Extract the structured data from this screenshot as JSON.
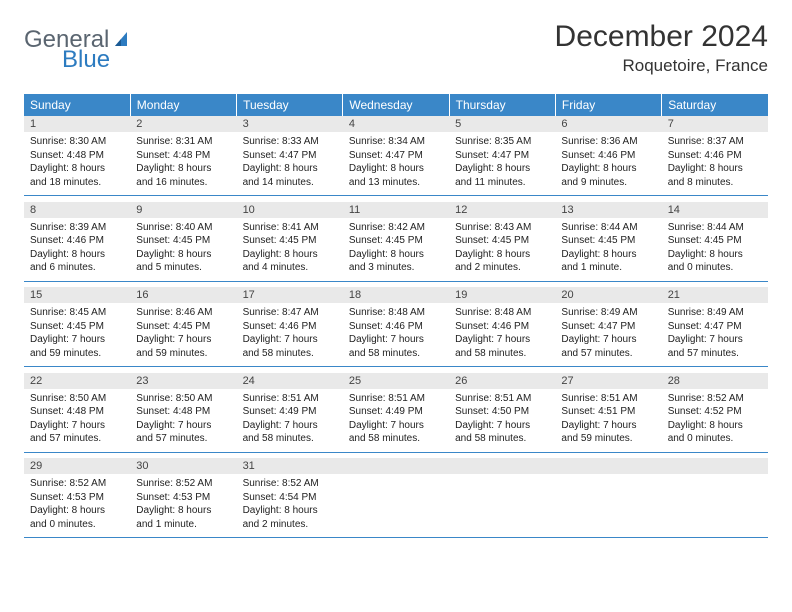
{
  "brand": {
    "word1": "General",
    "word2": "Blue"
  },
  "title": "December 2024",
  "location": "Roquetoire, France",
  "colors": {
    "header_bg": "#3a87c8",
    "header_text": "#ffffff",
    "daynum_bg": "#e9e9e9",
    "border": "#3a87c8",
    "brand_gray": "#5a6570",
    "brand_blue": "#2c7bc0"
  },
  "weekdays": [
    "Sunday",
    "Monday",
    "Tuesday",
    "Wednesday",
    "Thursday",
    "Friday",
    "Saturday"
  ],
  "weeks": [
    [
      {
        "d": "1",
        "sr": "Sunrise: 8:30 AM",
        "ss": "Sunset: 4:48 PM",
        "dl1": "Daylight: 8 hours",
        "dl2": "and 18 minutes."
      },
      {
        "d": "2",
        "sr": "Sunrise: 8:31 AM",
        "ss": "Sunset: 4:48 PM",
        "dl1": "Daylight: 8 hours",
        "dl2": "and 16 minutes."
      },
      {
        "d": "3",
        "sr": "Sunrise: 8:33 AM",
        "ss": "Sunset: 4:47 PM",
        "dl1": "Daylight: 8 hours",
        "dl2": "and 14 minutes."
      },
      {
        "d": "4",
        "sr": "Sunrise: 8:34 AM",
        "ss": "Sunset: 4:47 PM",
        "dl1": "Daylight: 8 hours",
        "dl2": "and 13 minutes."
      },
      {
        "d": "5",
        "sr": "Sunrise: 8:35 AM",
        "ss": "Sunset: 4:47 PM",
        "dl1": "Daylight: 8 hours",
        "dl2": "and 11 minutes."
      },
      {
        "d": "6",
        "sr": "Sunrise: 8:36 AM",
        "ss": "Sunset: 4:46 PM",
        "dl1": "Daylight: 8 hours",
        "dl2": "and 9 minutes."
      },
      {
        "d": "7",
        "sr": "Sunrise: 8:37 AM",
        "ss": "Sunset: 4:46 PM",
        "dl1": "Daylight: 8 hours",
        "dl2": "and 8 minutes."
      }
    ],
    [
      {
        "d": "8",
        "sr": "Sunrise: 8:39 AM",
        "ss": "Sunset: 4:46 PM",
        "dl1": "Daylight: 8 hours",
        "dl2": "and 6 minutes."
      },
      {
        "d": "9",
        "sr": "Sunrise: 8:40 AM",
        "ss": "Sunset: 4:45 PM",
        "dl1": "Daylight: 8 hours",
        "dl2": "and 5 minutes."
      },
      {
        "d": "10",
        "sr": "Sunrise: 8:41 AM",
        "ss": "Sunset: 4:45 PM",
        "dl1": "Daylight: 8 hours",
        "dl2": "and 4 minutes."
      },
      {
        "d": "11",
        "sr": "Sunrise: 8:42 AM",
        "ss": "Sunset: 4:45 PM",
        "dl1": "Daylight: 8 hours",
        "dl2": "and 3 minutes."
      },
      {
        "d": "12",
        "sr": "Sunrise: 8:43 AM",
        "ss": "Sunset: 4:45 PM",
        "dl1": "Daylight: 8 hours",
        "dl2": "and 2 minutes."
      },
      {
        "d": "13",
        "sr": "Sunrise: 8:44 AM",
        "ss": "Sunset: 4:45 PM",
        "dl1": "Daylight: 8 hours",
        "dl2": "and 1 minute."
      },
      {
        "d": "14",
        "sr": "Sunrise: 8:44 AM",
        "ss": "Sunset: 4:45 PM",
        "dl1": "Daylight: 8 hours",
        "dl2": "and 0 minutes."
      }
    ],
    [
      {
        "d": "15",
        "sr": "Sunrise: 8:45 AM",
        "ss": "Sunset: 4:45 PM",
        "dl1": "Daylight: 7 hours",
        "dl2": "and 59 minutes."
      },
      {
        "d": "16",
        "sr": "Sunrise: 8:46 AM",
        "ss": "Sunset: 4:45 PM",
        "dl1": "Daylight: 7 hours",
        "dl2": "and 59 minutes."
      },
      {
        "d": "17",
        "sr": "Sunrise: 8:47 AM",
        "ss": "Sunset: 4:46 PM",
        "dl1": "Daylight: 7 hours",
        "dl2": "and 58 minutes."
      },
      {
        "d": "18",
        "sr": "Sunrise: 8:48 AM",
        "ss": "Sunset: 4:46 PM",
        "dl1": "Daylight: 7 hours",
        "dl2": "and 58 minutes."
      },
      {
        "d": "19",
        "sr": "Sunrise: 8:48 AM",
        "ss": "Sunset: 4:46 PM",
        "dl1": "Daylight: 7 hours",
        "dl2": "and 58 minutes."
      },
      {
        "d": "20",
        "sr": "Sunrise: 8:49 AM",
        "ss": "Sunset: 4:47 PM",
        "dl1": "Daylight: 7 hours",
        "dl2": "and 57 minutes."
      },
      {
        "d": "21",
        "sr": "Sunrise: 8:49 AM",
        "ss": "Sunset: 4:47 PM",
        "dl1": "Daylight: 7 hours",
        "dl2": "and 57 minutes."
      }
    ],
    [
      {
        "d": "22",
        "sr": "Sunrise: 8:50 AM",
        "ss": "Sunset: 4:48 PM",
        "dl1": "Daylight: 7 hours",
        "dl2": "and 57 minutes."
      },
      {
        "d": "23",
        "sr": "Sunrise: 8:50 AM",
        "ss": "Sunset: 4:48 PM",
        "dl1": "Daylight: 7 hours",
        "dl2": "and 57 minutes."
      },
      {
        "d": "24",
        "sr": "Sunrise: 8:51 AM",
        "ss": "Sunset: 4:49 PM",
        "dl1": "Daylight: 7 hours",
        "dl2": "and 58 minutes."
      },
      {
        "d": "25",
        "sr": "Sunrise: 8:51 AM",
        "ss": "Sunset: 4:49 PM",
        "dl1": "Daylight: 7 hours",
        "dl2": "and 58 minutes."
      },
      {
        "d": "26",
        "sr": "Sunrise: 8:51 AM",
        "ss": "Sunset: 4:50 PM",
        "dl1": "Daylight: 7 hours",
        "dl2": "and 58 minutes."
      },
      {
        "d": "27",
        "sr": "Sunrise: 8:51 AM",
        "ss": "Sunset: 4:51 PM",
        "dl1": "Daylight: 7 hours",
        "dl2": "and 59 minutes."
      },
      {
        "d": "28",
        "sr": "Sunrise: 8:52 AM",
        "ss": "Sunset: 4:52 PM",
        "dl1": "Daylight: 8 hours",
        "dl2": "and 0 minutes."
      }
    ],
    [
      {
        "d": "29",
        "sr": "Sunrise: 8:52 AM",
        "ss": "Sunset: 4:53 PM",
        "dl1": "Daylight: 8 hours",
        "dl2": "and 0 minutes."
      },
      {
        "d": "30",
        "sr": "Sunrise: 8:52 AM",
        "ss": "Sunset: 4:53 PM",
        "dl1": "Daylight: 8 hours",
        "dl2": "and 1 minute."
      },
      {
        "d": "31",
        "sr": "Sunrise: 8:52 AM",
        "ss": "Sunset: 4:54 PM",
        "dl1": "Daylight: 8 hours",
        "dl2": "and 2 minutes."
      },
      null,
      null,
      null,
      null
    ]
  ]
}
